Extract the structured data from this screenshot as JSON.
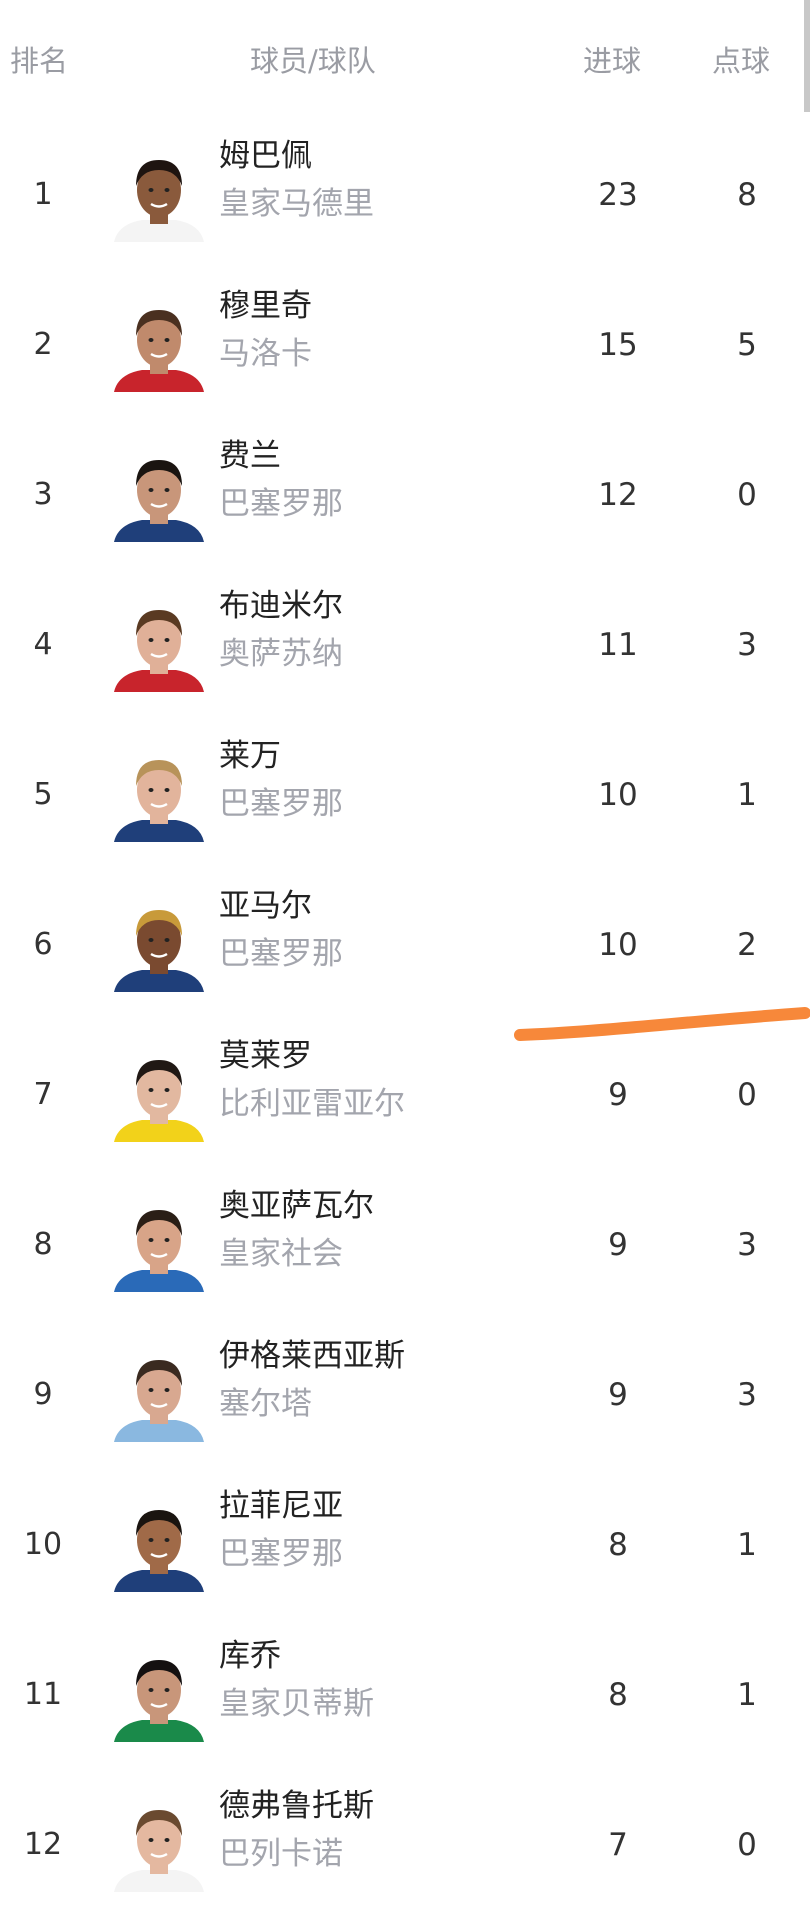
{
  "header": {
    "rank": "排名",
    "player_team": "球员/球队",
    "goals": "进球",
    "penalties": "点球"
  },
  "rows": [
    {
      "rank": "1",
      "name": "姆巴佩",
      "team": "皇家马德里",
      "goals": "23",
      "penalties": "8",
      "skin": "#8a5a3c",
      "hair": "#1e1410",
      "jersey": "#f4f4f4"
    },
    {
      "rank": "2",
      "name": "穆里奇",
      "team": "马洛卡",
      "goals": "15",
      "penalties": "5",
      "skin": "#c08a6c",
      "hair": "#4a3020",
      "jersey": "#c8242c"
    },
    {
      "rank": "3",
      "name": "费兰",
      "team": "巴塞罗那",
      "goals": "12",
      "penalties": "0",
      "skin": "#c8967a",
      "hair": "#1a1410",
      "jersey": "#1f3f7a"
    },
    {
      "rank": "4",
      "name": "布迪米尔",
      "team": "奥萨苏纳",
      "goals": "11",
      "penalties": "3",
      "skin": "#e0b098",
      "hair": "#5a3a22",
      "jersey": "#c8242c"
    },
    {
      "rank": "5",
      "name": "莱万",
      "team": "巴塞罗那",
      "goals": "10",
      "penalties": "1",
      "skin": "#e2b49c",
      "hair": "#b8935a",
      "jersey": "#1f3f7a"
    },
    {
      "rank": "6",
      "name": "亚马尔",
      "team": "巴塞罗那",
      "goals": "10",
      "penalties": "2",
      "skin": "#7a4a30",
      "hair": "#c89a3a",
      "jersey": "#1f3f7a"
    },
    {
      "rank": "7",
      "name": "莫莱罗",
      "team": "比利亚雷亚尔",
      "goals": "9",
      "penalties": "0",
      "skin": "#e2b8a0",
      "hair": "#201814",
      "jersey": "#f2d21a"
    },
    {
      "rank": "8",
      "name": "奥亚萨瓦尔",
      "team": "皇家社会",
      "goals": "9",
      "penalties": "3",
      "skin": "#d8a488",
      "hair": "#2a1e16",
      "jersey": "#2a6ab8"
    },
    {
      "rank": "9",
      "name": "伊格莱西亚斯",
      "team": "塞尔塔",
      "goals": "9",
      "penalties": "3",
      "skin": "#d8a890",
      "hair": "#3a2a20",
      "jersey": "#8ab8e0"
    },
    {
      "rank": "10",
      "name": "拉菲尼亚",
      "team": "巴塞罗那",
      "goals": "8",
      "penalties": "1",
      "skin": "#a06a48",
      "hair": "#1a1410",
      "jersey": "#1f3f7a"
    },
    {
      "rank": "11",
      "name": "库乔",
      "team": "皇家贝蒂斯",
      "goals": "8",
      "penalties": "1",
      "skin": "#c8967a",
      "hair": "#141010",
      "jersey": "#1a8a4a"
    },
    {
      "rank": "12",
      "name": "德弗鲁托斯",
      "team": "巴列卡诺",
      "goals": "7",
      "penalties": "0",
      "skin": "#e4b8a0",
      "hair": "#6a4a30",
      "jersey": "#f4f4f4"
    }
  ],
  "annotation": {
    "color": "#f7883a"
  }
}
